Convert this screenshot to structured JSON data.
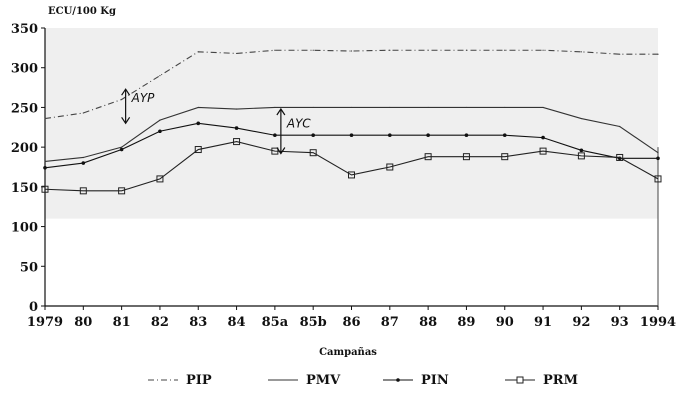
{
  "chart_data": {
    "type": "line",
    "ylabel": "ECU/100 Kg",
    "xlabel": "Campañas",
    "categories": [
      "1979",
      "80",
      "81",
      "82",
      "83",
      "84",
      "85a",
      "85b",
      "86",
      "87",
      "88",
      "89",
      "90",
      "91",
      "92",
      "93",
      "1994"
    ],
    "ylim": [
      0,
      350
    ],
    "yticks": [
      "0",
      "50",
      "100",
      "150",
      "200",
      "250",
      "300",
      "350"
    ],
    "grid": false,
    "shaded_band": [
      110,
      350
    ],
    "legend_position": "bottom",
    "series": [
      {
        "name": "PIP",
        "values": [
          236,
          243,
          260,
          290,
          320,
          318,
          322,
          322,
          321,
          322,
          322,
          322,
          322,
          322,
          320,
          317,
          317
        ],
        "color": "#444444",
        "marker": "none"
      },
      {
        "name": "PMV",
        "values": [
          182,
          187,
          200,
          234,
          250,
          248,
          250,
          250,
          250,
          250,
          250,
          250,
          250,
          250,
          236,
          226,
          193
        ],
        "color": "#333333",
        "marker": "none"
      },
      {
        "name": "PIN",
        "values": [
          174,
          180,
          197,
          220,
          230,
          224,
          215,
          215,
          215,
          215,
          215,
          215,
          215,
          212,
          196,
          186,
          186
        ],
        "color": "#111111",
        "marker": "dot"
      },
      {
        "name": "PRM",
        "values": [
          147,
          145,
          145,
          160,
          197,
          207,
          195,
          193,
          165,
          175,
          188,
          188,
          188,
          195,
          189,
          187,
          160
        ],
        "color": "#222222",
        "marker": "square"
      }
    ],
    "annotations": [
      {
        "text": "AYP",
        "x": "81",
        "y_from": 230,
        "y_to": 273
      },
      {
        "text": "AYC",
        "x": "85a",
        "y_from": 192,
        "y_to": 248
      }
    ]
  }
}
